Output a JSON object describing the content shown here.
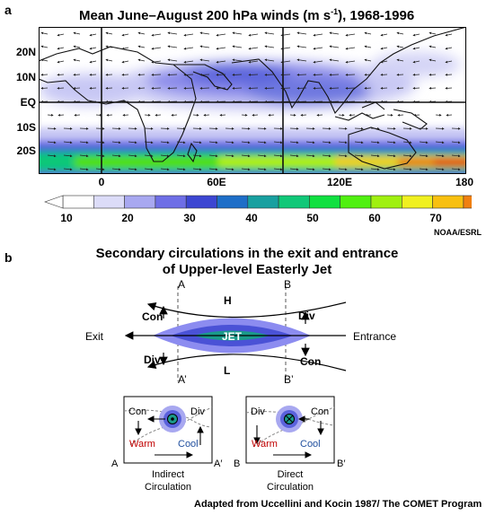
{
  "panel_a": {
    "letter": "a",
    "title_main": "Mean June–August 200 hPa winds (m s",
    "title_sup": "-1",
    "title_end": "), 1968-1996",
    "lat_labels": [
      "20N",
      "10N",
      "EQ",
      "10S",
      "20S"
    ],
    "lon_labels": [
      "0",
      "60E",
      "120E",
      "180"
    ],
    "colorbar_ticks": [
      "10",
      "20",
      "30",
      "40",
      "50",
      "60",
      "70"
    ],
    "colorbar_colors": [
      "#ffffff",
      "#dcdcf8",
      "#a8a8f0",
      "#6e6ee6",
      "#3c46d2",
      "#1e6ec8",
      "#18a0a0",
      "#10c878",
      "#10e040",
      "#50f010",
      "#a0f010",
      "#f0f020",
      "#f8c010",
      "#f08010",
      "#e84010",
      "#e00000"
    ],
    "credit": "NOAA/ESRL"
  },
  "panel_b": {
    "letter": "b",
    "title_line1": "Secondary circulations in the exit and entrance",
    "title_line2": "of Upper-level Easterly Jet",
    "labels": {
      "A": "A",
      "B": "B",
      "A_prime": "A’",
      "B_prime": "B’",
      "H": "H",
      "L": "L",
      "jet": "JET",
      "exit": "Exit",
      "entrance": "Entrance",
      "con_left": "Con",
      "div_left": "Div",
      "div_right": "Div",
      "con_right": "Con"
    },
    "indirect": {
      "con": "Con",
      "div": "Div",
      "warm": "Warm",
      "cool": "Cool",
      "left": "A",
      "right": "A′",
      "caption1": "Indirect",
      "caption2": "Circulation"
    },
    "direct": {
      "div": "Div",
      "con": "Con",
      "warm": "Warm",
      "cool": "Cool",
      "left": "B",
      "right": "B′",
      "caption1": "Direct",
      "caption2": "Circulation"
    },
    "colors": {
      "warm": "#c00000",
      "cool": "#1f4e9e",
      "jet_text": "#ffffff"
    },
    "credit": "Adapted from Uccellini and Kocin 1987/ The COMET Program"
  }
}
